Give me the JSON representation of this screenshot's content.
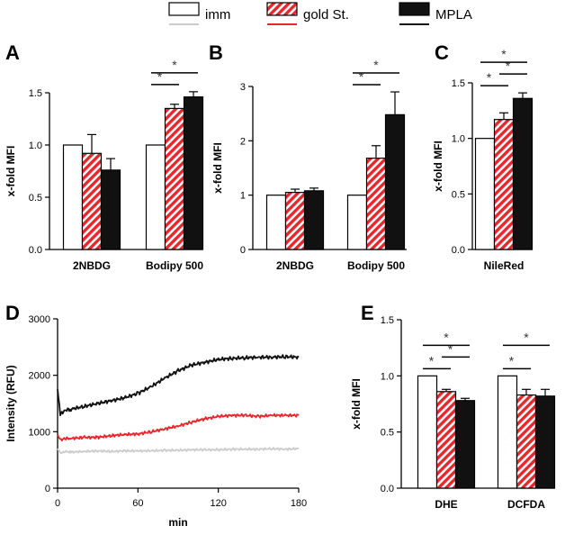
{
  "colors": {
    "imm": "#ffffff",
    "gold": "#e8262b",
    "mpla": "#111111",
    "imm_line": "#cccccc",
    "axis": "#000000"
  },
  "legend": [
    {
      "key": "imm",
      "label": "imm"
    },
    {
      "key": "gold",
      "label": "gold St."
    },
    {
      "key": "mpla",
      "label": "MPLA"
    }
  ],
  "chart_data": [
    {
      "panel": "A",
      "type": "bar",
      "ylabel": "x-fold MFI",
      "ylim": [
        0,
        1.5
      ],
      "yticks": [
        "0.0",
        "0.5",
        "1.0",
        "1.5"
      ],
      "categories": [
        "2NBDG",
        "Bodipy 500"
      ],
      "series": [
        {
          "name": "imm",
          "values": [
            1.0,
            1.0
          ],
          "errors": [
            0,
            0
          ]
        },
        {
          "name": "gold St.",
          "values": [
            0.92,
            1.35
          ],
          "errors": [
            0.18,
            0.04
          ]
        },
        {
          "name": "MPLA",
          "values": [
            0.76,
            1.46
          ],
          "errors": [
            0.11,
            0.05
          ]
        }
      ],
      "significance": [
        {
          "category": 1,
          "from": 0,
          "to": 1,
          "level": 1,
          "label": "*"
        },
        {
          "category": 1,
          "from": 0,
          "to": 2,
          "level": 2,
          "label": "*"
        }
      ]
    },
    {
      "panel": "B",
      "type": "bar",
      "ylabel": "x-fold MFI",
      "ylim": [
        0,
        3
      ],
      "yticks": [
        "0",
        "1",
        "2",
        "3"
      ],
      "categories": [
        "2NBDG",
        "Bodipy 500"
      ],
      "series": [
        {
          "name": "imm",
          "values": [
            1.0,
            1.0
          ],
          "errors": [
            0,
            0
          ]
        },
        {
          "name": "gold St.",
          "values": [
            1.05,
            1.68
          ],
          "errors": [
            0.06,
            0.23
          ]
        },
        {
          "name": "MPLA",
          "values": [
            1.08,
            2.48
          ],
          "errors": [
            0.05,
            0.42
          ]
        }
      ],
      "significance": [
        {
          "category": 1,
          "from": 0,
          "to": 1,
          "level": 1,
          "label": "*"
        },
        {
          "category": 1,
          "from": 0,
          "to": 2,
          "level": 2,
          "label": "*"
        }
      ]
    },
    {
      "panel": "C",
      "type": "bar",
      "ylabel": "x-fold MFI",
      "ylim": [
        0,
        1.5
      ],
      "yticks": [
        "0.0",
        "0.5",
        "1.0",
        "1.5"
      ],
      "categories": [
        "NileRed"
      ],
      "series": [
        {
          "name": "imm",
          "values": [
            1.0
          ],
          "errors": [
            0
          ]
        },
        {
          "name": "gold St.",
          "values": [
            1.17
          ],
          "errors": [
            0.06
          ]
        },
        {
          "name": "MPLA",
          "values": [
            1.36
          ],
          "errors": [
            0.05
          ]
        }
      ],
      "significance": [
        {
          "category": 0,
          "from": 0,
          "to": 1,
          "level": 1,
          "label": "*"
        },
        {
          "category": 0,
          "from": 1,
          "to": 2,
          "level": 2,
          "label": "*"
        },
        {
          "category": 0,
          "from": 0,
          "to": 2,
          "level": 3,
          "label": "*"
        }
      ]
    },
    {
      "panel": "D",
      "type": "line",
      "xlabel": "min",
      "ylabel": "Intensity (RFU)",
      "xlim": [
        0,
        180
      ],
      "ylim": [
        0,
        3000
      ],
      "xticks": [
        "0",
        "60",
        "120",
        "180"
      ],
      "yticks": [
        "0",
        "1000",
        "2000",
        "3000"
      ],
      "x": [
        0,
        2,
        5,
        10,
        20,
        30,
        40,
        50,
        60,
        70,
        80,
        90,
        100,
        110,
        120,
        130,
        140,
        150,
        160,
        170,
        180
      ],
      "series": [
        {
          "name": "imm",
          "values": [
            700,
            620,
            650,
            640,
            650,
            660,
            650,
            660,
            660,
            660,
            670,
            670,
            680,
            680,
            680,
            690,
            690,
            690,
            700,
            690,
            700
          ]
        },
        {
          "name": "gold St.",
          "values": [
            950,
            850,
            880,
            880,
            900,
            900,
            930,
            950,
            960,
            1000,
            1050,
            1100,
            1170,
            1230,
            1270,
            1290,
            1290,
            1270,
            1290,
            1290,
            1290
          ]
        },
        {
          "name": "MPLA",
          "values": [
            1750,
            1300,
            1380,
            1400,
            1450,
            1500,
            1550,
            1600,
            1680,
            1800,
            1950,
            2080,
            2180,
            2230,
            2280,
            2300,
            2310,
            2320,
            2320,
            2330,
            2320
          ]
        }
      ]
    },
    {
      "panel": "E",
      "type": "bar",
      "ylabel": "x-fold MFI",
      "ylim": [
        0,
        1.5
      ],
      "yticks": [
        "0.0",
        "0.5",
        "1.0",
        "1.5"
      ],
      "categories": [
        "DHE",
        "DCFDA"
      ],
      "series": [
        {
          "name": "imm",
          "values": [
            1.0,
            1.0
          ],
          "errors": [
            0,
            0
          ]
        },
        {
          "name": "gold St.",
          "values": [
            0.86,
            0.83
          ],
          "errors": [
            0.02,
            0.05
          ]
        },
        {
          "name": "MPLA",
          "values": [
            0.78,
            0.82
          ],
          "errors": [
            0.02,
            0.06
          ]
        }
      ],
      "significance": [
        {
          "category": 0,
          "from": 0,
          "to": 1,
          "level": 1,
          "label": "*"
        },
        {
          "category": 0,
          "from": 1,
          "to": 2,
          "level": 2,
          "label": "*"
        },
        {
          "category": 0,
          "from": 0,
          "to": 2,
          "level": 3,
          "label": "*"
        },
        {
          "category": 1,
          "from": 0,
          "to": 1,
          "level": 1,
          "label": "*"
        },
        {
          "category": 1,
          "from": 0,
          "to": 2,
          "level": 3,
          "label": "*"
        }
      ]
    }
  ]
}
